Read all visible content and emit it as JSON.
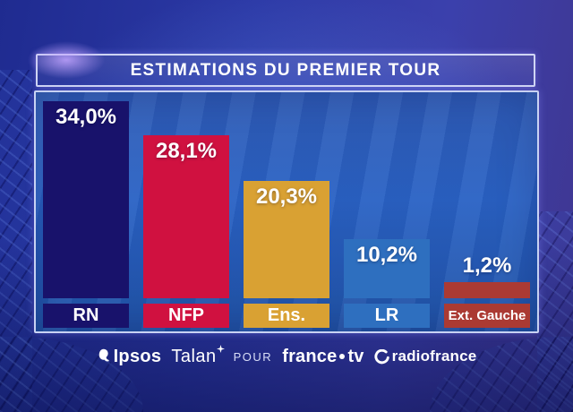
{
  "title": "ESTIMATIONS DU PREMIER TOUR",
  "chart_data": {
    "type": "bar",
    "title": "ESTIMATIONS DU PREMIER TOUR",
    "categories": [
      "RN",
      "NFP",
      "Ens.",
      "LR",
      "Ext. Gauche"
    ],
    "values": [
      34.0,
      28.1,
      20.3,
      10.2,
      1.2
    ],
    "value_labels": [
      "34,0%",
      "28,1%",
      "20,3%",
      "10,2%",
      "1,2%"
    ],
    "bar_colors": [
      "#18126b",
      "#d01140",
      "#d9a133",
      "#2e6fbf",
      "#ab3a33"
    ],
    "xlabel": "",
    "ylabel": "",
    "ylim": [
      0,
      36
    ],
    "grid": false,
    "legend": "none",
    "value_label_style": "white bold, inside top of bar; above bar when bar is very short"
  },
  "credits": {
    "ipsos": "Ipsos",
    "talan": "Talan",
    "pour": "POUR",
    "francetv_left": "france",
    "francetv_right": "tv",
    "radiofrance": "radiofrance"
  },
  "colors": {
    "background": "#2c39a6",
    "panel_fill": "#2a62c4",
    "frame_border": "#d8def8",
    "text": "#ffffff"
  }
}
